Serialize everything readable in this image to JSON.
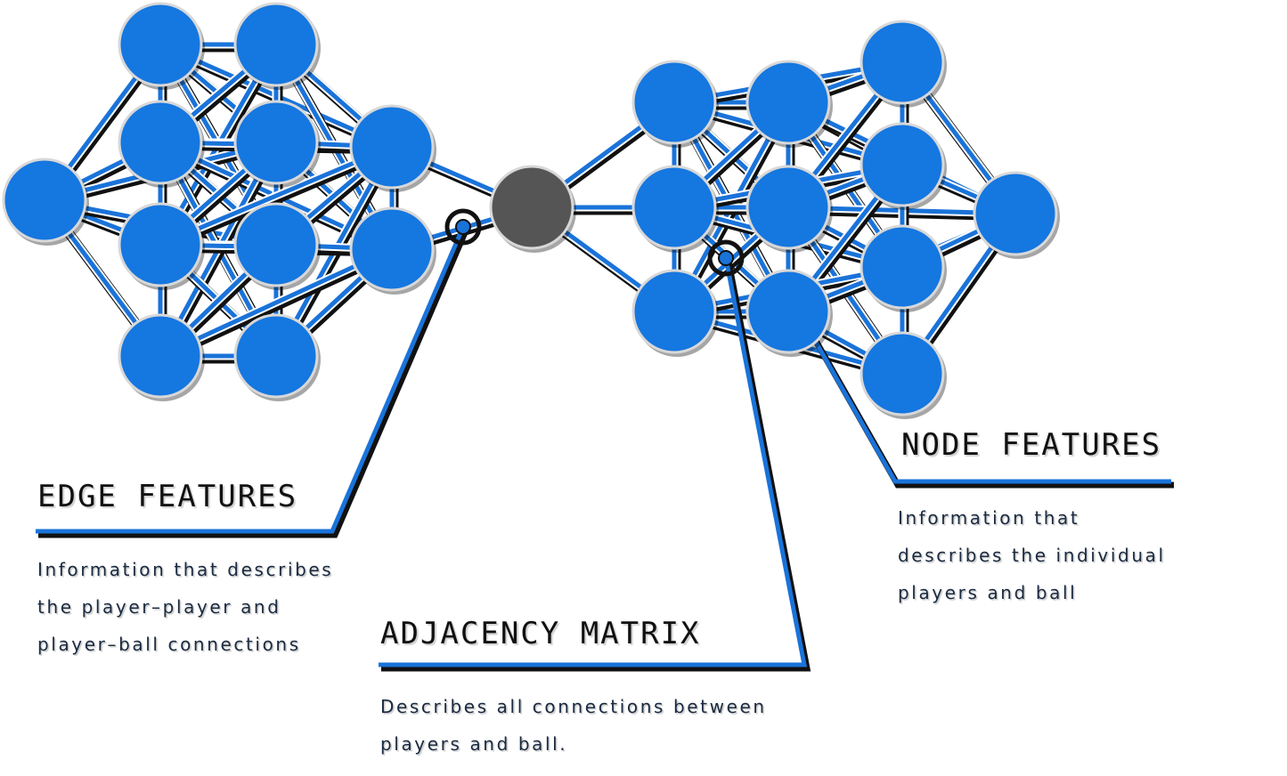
{
  "annotations": {
    "edge": {
      "title": "EDGE FEATURES",
      "lines": [
        "Information that describes",
        "the player–player and",
        "player–ball connections"
      ]
    },
    "adjacency": {
      "title": "ADJACENCY MATRIX",
      "lines": [
        "Describes all connections between",
        "players and ball."
      ]
    },
    "node": {
      "title": "NODE FEATURES",
      "lines": [
        "Information that",
        "describes the individual",
        "players and ball"
      ]
    }
  },
  "colors": {
    "node_fill": "#1577e0",
    "ball_fill": "#555555",
    "edge_blue": "#1a73d9",
    "edge_dark": "#111111"
  },
  "icons": {
    "player": "player-node-icon",
    "ball": "ball-node-icon"
  }
}
